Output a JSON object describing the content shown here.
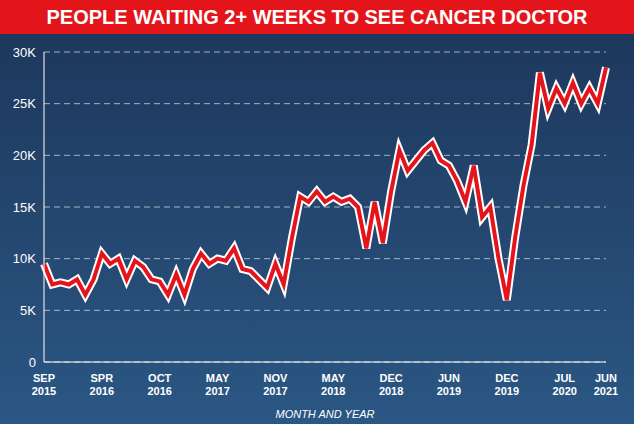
{
  "chart_data": {
    "type": "line",
    "title": "PEOPLE WAITING 2+ WEEKS TO SEE CANCER DOCTOR",
    "x_label": "MONTH AND YEAR",
    "categories": [
      "SEP 2015",
      null,
      null,
      null,
      null,
      null,
      null,
      "SPR 2016",
      null,
      null,
      null,
      null,
      null,
      null,
      "OCT 2016",
      null,
      null,
      null,
      null,
      null,
      null,
      "MAY 2017",
      null,
      null,
      null,
      null,
      null,
      null,
      "NOV 2017",
      null,
      null,
      null,
      null,
      null,
      null,
      "MAY 2018",
      null,
      null,
      null,
      null,
      null,
      null,
      "DEC 2018",
      null,
      null,
      null,
      null,
      null,
      null,
      "JUN 2019",
      null,
      null,
      null,
      null,
      null,
      null,
      "DEC 2019",
      null,
      null,
      null,
      null,
      null,
      null,
      "JUL 2020",
      null,
      null,
      null,
      null,
      "JUN 2021"
    ],
    "values": [
      9500,
      7500,
      7700,
      7500,
      8000,
      6500,
      8000,
      10500,
      9500,
      10000,
      8000,
      9800,
      9200,
      8000,
      7800,
      6500,
      8500,
      6500,
      9000,
      10500,
      9500,
      10000,
      9800,
      11000,
      9000,
      8800,
      8000,
      7200,
      9500,
      7500,
      12000,
      16000,
      15500,
      16500,
      15500,
      16000,
      15500,
      15800,
      15000,
      11000,
      15500,
      11500,
      16500,
      20500,
      18500,
      19500,
      20500,
      21200,
      19500,
      19000,
      17500,
      15500,
      19000,
      14000,
      15000,
      10000,
      6000,
      12000,
      17000,
      21000,
      28000,
      24500,
      26500,
      25000,
      27000,
      25000,
      26500,
      25000,
      28500
    ],
    "color": "#e4141b",
    "ylim": [
      0,
      30000
    ],
    "yticks": [
      0,
      {
        "value": 5000,
        "label": "5K"
      },
      {
        "value": 10000,
        "label": "10K"
      },
      {
        "value": 15000,
        "label": "15K"
      },
      {
        "value": 20000,
        "label": "20K"
      },
      {
        "value": 25000,
        "label": "25K"
      },
      {
        "value": 30000,
        "label": "30K"
      }
    ],
    "grid": true
  }
}
